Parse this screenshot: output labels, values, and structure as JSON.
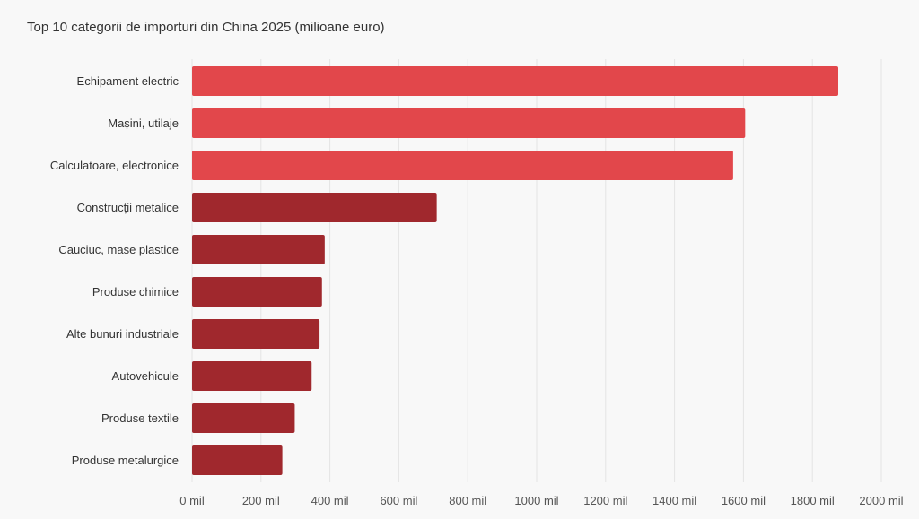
{
  "chart_data": {
    "type": "bar",
    "orientation": "horizontal",
    "title": "Top 10 categorii de importuri din China 2025 (milioane euro)",
    "xlabel": "",
    "ylabel": "",
    "xlim": [
      0,
      2000
    ],
    "grid": true,
    "categories": [
      "Echipament electric",
      "Mașini, utilaje",
      "Calculatoare, electronice",
      "Construcții metalice",
      "Cauciuc, mase plastice",
      "Produse chimice",
      "Alte bunuri industriale",
      "Autovehicule",
      "Produse textile",
      "Produse metalurgice"
    ],
    "values": [
      1875,
      1605,
      1570,
      710,
      385,
      377,
      370,
      347,
      298,
      262
    ],
    "bar_colors": [
      "#e2474b",
      "#e2474b",
      "#e2474b",
      "#a0282d",
      "#a0282d",
      "#a0282d",
      "#a0282d",
      "#a0282d",
      "#a0282d",
      "#a0282d"
    ],
    "ticks": [
      0,
      200,
      400,
      600,
      800,
      1000,
      1200,
      1400,
      1600,
      1800,
      2000
    ],
    "tick_labels": [
      "0 mil",
      "200 mil",
      "400 mil",
      "600 mil",
      "800 mil",
      "1000 mil",
      "1200 mil",
      "1400 mil",
      "1600 mil",
      "1800 mil",
      "2000 mil"
    ]
  }
}
